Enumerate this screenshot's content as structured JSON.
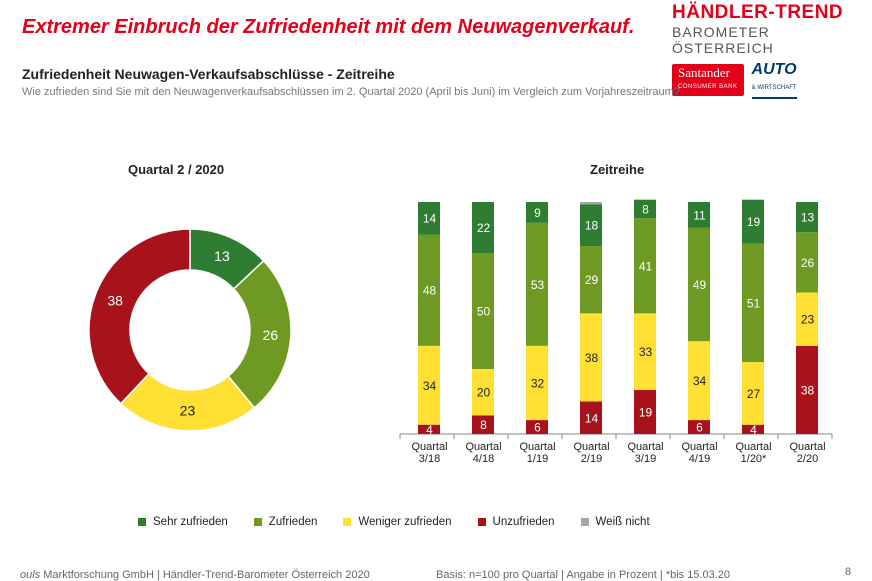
{
  "headline": "Extremer Einbruch der Zufriedenheit mit dem Neuwagenverkauf.",
  "logo": {
    "title": "HÄNDLER-TREND",
    "subtitle": "BAROMETER ÖSTERREICH",
    "sponsor1": "Santander",
    "sponsor1_sub": "CONSUMER BANK",
    "sponsor2": "AUTO",
    "sponsor2_sub": "& WIRTSCHAFT"
  },
  "subtitle": "Zufriedenheit Neuwagen-Verkaufsabschlüsse - Zeitreihe",
  "question": "Wie zufrieden sind Sie mit den Neuwagenverkaufsabschlüssen im 2. Quartal 2020 (April bis Juni) im Vergleich zum Vorjahreszeitraum?",
  "colors": {
    "sehr_zufrieden": "#2e7d32",
    "zufrieden": "#6e9a24",
    "weniger_zufrieden": "#ffe033",
    "unzufrieden": "#a8121a",
    "weiss_nicht": "#a6a6a6"
  },
  "legend": [
    {
      "label": "Sehr zufrieden",
      "color": "#2e7d32"
    },
    {
      "label": "Zufrieden",
      "color": "#6e9a24"
    },
    {
      "label": "Weniger zufrieden",
      "color": "#ffe033"
    },
    {
      "label": "Unzufrieden",
      "color": "#a8121a"
    },
    {
      "label": "Weiß nicht",
      "color": "#a6a6a6"
    }
  ],
  "footer": {
    "brand": "ouls",
    "left_rest": " Marktforschung GmbH | Händler-Trend-Barometer Österreich 2020",
    "right": "Basis: n=100 pro Quartal | Angabe in Prozent | *bis 15.03.20"
  },
  "page_number": "8",
  "chart_data": [
    {
      "type": "pie",
      "title": "Quartal 2 / 2020",
      "donut": true,
      "slices": [
        {
          "label": "Sehr zufrieden",
          "value": 13,
          "color": "#2e7d32"
        },
        {
          "label": "Zufrieden",
          "value": 26,
          "color": "#6e9a24"
        },
        {
          "label": "Weniger zufrieden",
          "value": 23,
          "color": "#ffe033"
        },
        {
          "label": "Unzufrieden",
          "value": 38,
          "color": "#a8121a"
        }
      ]
    },
    {
      "type": "bar",
      "stacked": true,
      "title": "Zeitreihe",
      "categories": [
        [
          "Quartal",
          "3/18"
        ],
        [
          "Quartal",
          "4/18"
        ],
        [
          "Quartal",
          "1/19"
        ],
        [
          "Quartal",
          "2/19"
        ],
        [
          "Quartal",
          "3/19"
        ],
        [
          "Quartal",
          "4/19"
        ],
        [
          "Quartal",
          "1/20*"
        ],
        [
          "Quartal",
          "2/20"
        ]
      ],
      "ylim": [
        0,
        100
      ],
      "series": [
        {
          "name": "Unzufrieden",
          "color": "#a8121a",
          "values": [
            4,
            8,
            6,
            14,
            19,
            6,
            4,
            38
          ]
        },
        {
          "name": "Weniger zufrieden",
          "color": "#ffe033",
          "values": [
            34,
            20,
            32,
            38,
            33,
            34,
            27,
            23
          ]
        },
        {
          "name": "Zufrieden",
          "color": "#6e9a24",
          "values": [
            48,
            50,
            53,
            29,
            41,
            49,
            51,
            26
          ]
        },
        {
          "name": "Sehr zufrieden",
          "color": "#2e7d32",
          "values": [
            14,
            22,
            9,
            18,
            8,
            11,
            19,
            13
          ]
        },
        {
          "name": "Weiß nicht",
          "color": "#a6a6a6",
          "values": [
            0,
            0,
            0,
            1,
            0,
            0,
            0,
            0
          ]
        }
      ]
    }
  ]
}
